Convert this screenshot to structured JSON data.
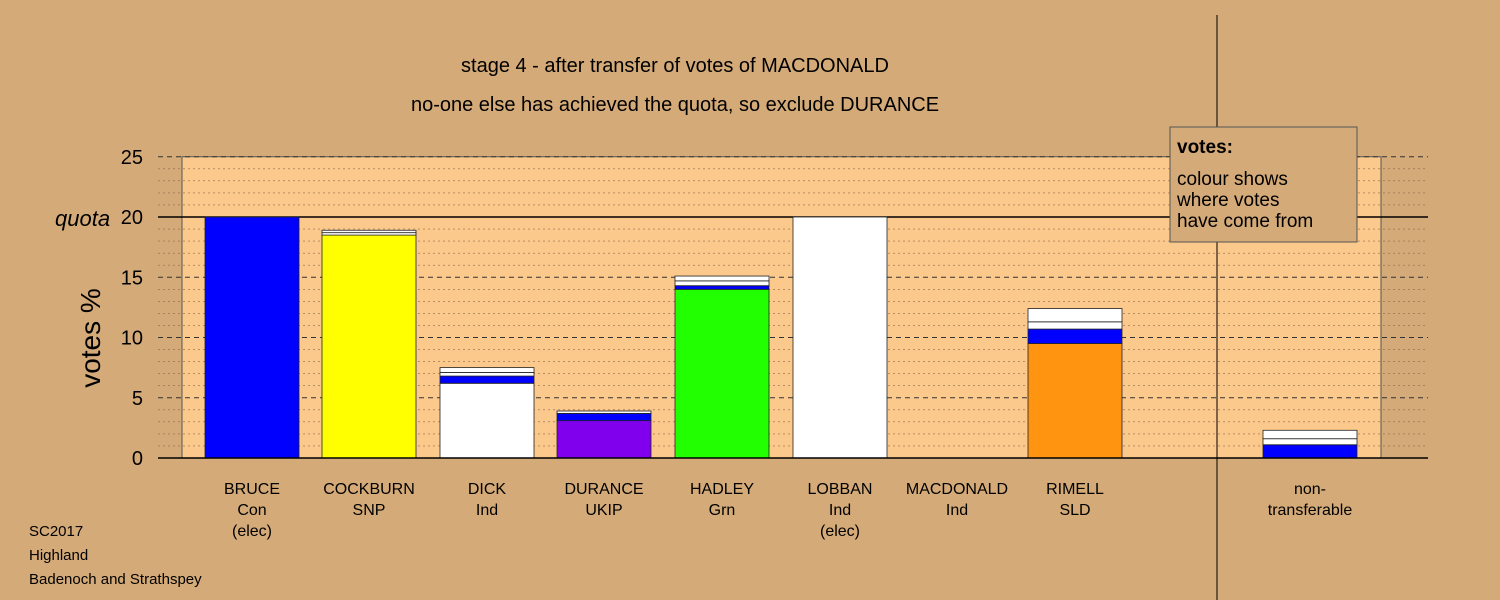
{
  "colors": {
    "background": "#d4aa78",
    "plot_area": "#fcc98c",
    "Con": "#0000ff",
    "SNP": "#ffff00",
    "Ind": "#ffffff",
    "UKIP": "#8000ee",
    "Grn": "#22ff00",
    "SLD": "#ff9410",
    "other": "#ffffff"
  },
  "footer": {
    "line1": "SC2017",
    "line2": "Highland",
    "line3": "Badenoch and Strathspey"
  },
  "legend": {
    "heading": "votes:",
    "line1": "colour shows",
    "line2": "where votes",
    "line3": "have come from"
  },
  "chart_data": {
    "type": "bar",
    "title": "stage 4 - after transfer of votes of MACDONALD",
    "subtitle": "no-one else has achieved the quota, so exclude DURANCE",
    "ylabel": "votes %",
    "ylim": [
      0,
      25
    ],
    "yticks": [
      0,
      5,
      10,
      15,
      20,
      25
    ],
    "quota": 20,
    "quota_label": "quota",
    "grid": true,
    "legend_position": "top-right",
    "categories": [
      {
        "name": "BRUCE",
        "party": "Con",
        "note": "(elec)"
      },
      {
        "name": "COCKBURN",
        "party": "SNP",
        "note": ""
      },
      {
        "name": "DICK",
        "party": "Ind",
        "note": ""
      },
      {
        "name": "DURANCE",
        "party": "UKIP",
        "note": ""
      },
      {
        "name": "HADLEY",
        "party": "Grn",
        "note": ""
      },
      {
        "name": "LOBBAN",
        "party": "Ind",
        "note": "(elec)"
      },
      {
        "name": "MACDONALD",
        "party": "Ind",
        "note": ""
      },
      {
        "name": "RIMELL",
        "party": "SLD",
        "note": ""
      },
      {
        "name": "non-",
        "party": "transferable",
        "note": ""
      }
    ],
    "stacks": [
      [
        {
          "source": "Con",
          "value": 20.0
        }
      ],
      [
        {
          "source": "SNP",
          "value": 18.5
        },
        {
          "source": "other",
          "value": 0.2
        },
        {
          "source": "other",
          "value": 0.2
        }
      ],
      [
        {
          "source": "Ind",
          "value": 6.2
        },
        {
          "source": "Con",
          "value": 0.6
        },
        {
          "source": "other",
          "value": 0.3
        },
        {
          "source": "other",
          "value": 0.4
        }
      ],
      [
        {
          "source": "UKIP",
          "value": 3.1
        },
        {
          "source": "Con",
          "value": 0.6
        },
        {
          "source": "other",
          "value": 0.2
        }
      ],
      [
        {
          "source": "Grn",
          "value": 14.0
        },
        {
          "source": "Con",
          "value": 0.3
        },
        {
          "source": "other",
          "value": 0.4
        },
        {
          "source": "other",
          "value": 0.4
        }
      ],
      [
        {
          "source": "Ind",
          "value": 20.0
        }
      ],
      [],
      [
        {
          "source": "SLD",
          "value": 9.5
        },
        {
          "source": "Con",
          "value": 1.2
        },
        {
          "source": "other",
          "value": 0.6
        },
        {
          "source": "other",
          "value": 1.1
        }
      ],
      [
        {
          "source": "Con",
          "value": 1.1
        },
        {
          "source": "other",
          "value": 0.5
        },
        {
          "source": "other",
          "value": 0.7
        }
      ]
    ]
  }
}
